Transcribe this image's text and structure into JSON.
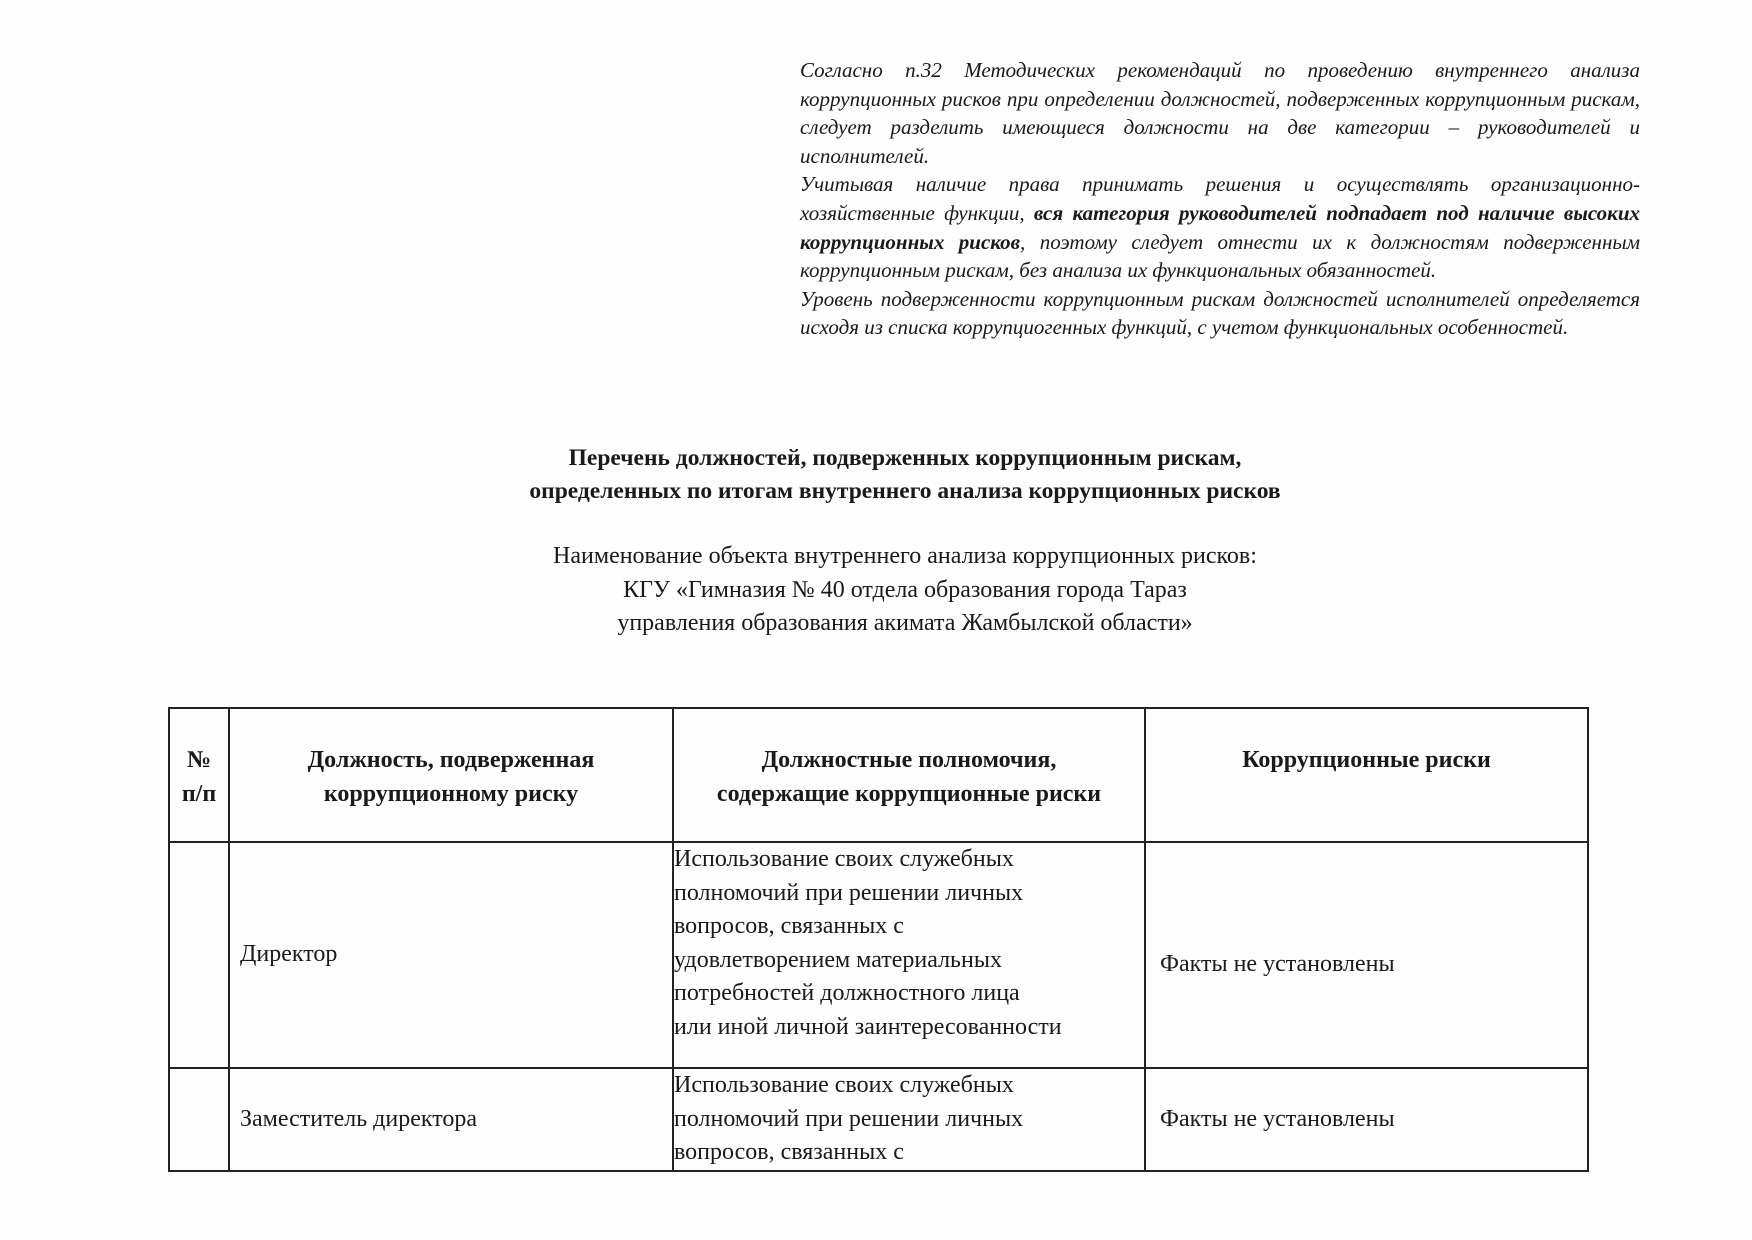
{
  "intro": {
    "p1": "Согласно п.32 Методических рекомендаций по проведению внутреннего анализа коррупционных рисков при определении должностей, подверженных коррупционным рискам, следует разделить имеющиеся должности на две категории – руководителей и исполнителей.",
    "p2_start": "Учитывая наличие права принимать решения и осуществлять организационно-хозяйственные функции, ",
    "p2_bold": "вся категория руководителей подпадает под наличие высоких коррупционных рисков",
    "p2_end": ", поэтому следует отнести их к должностям подверженным коррупционным рискам, без анализа их функциональных обязанностей.",
    "p3": "Уровень подверженности коррупционным рискам должностей исполнителей определяется исходя из списка коррупциогенных функций, с учетом функциональных особенностей."
  },
  "title": {
    "line1": "Перечень должностей, подверженных коррупционным рискам,",
    "line2": "определенных по итогам внутреннего анализа коррупционных рисков"
  },
  "subtitle": {
    "line1": "Наименование объекта внутреннего анализа коррупционных рисков:",
    "line2": "КГУ «Гимназия № 40 отдела образования города Тараз",
    "line3": "управления образования акимата Жамбылской области»"
  },
  "table": {
    "headers": {
      "num_line1": "№",
      "num_line2": "п/п",
      "position_line1": "Должность, подверженная",
      "position_line2": "коррупционному риску",
      "authority_line1": "Должностные полномочия,",
      "authority_line2": "содержащие коррупционные риски",
      "risks": "Коррупционные риски"
    },
    "rows": [
      {
        "num": "",
        "position": "Директор",
        "authority_lines": [
          "Использование своих служебных",
          "полномочий при решении личных",
          "вопросов, связанных с",
          "удовлетворением материальных",
          "потребностей должностного лица",
          "или иной личной заинтересованности"
        ],
        "risks": "Факты не установлены"
      },
      {
        "num": "",
        "position": "Заместитель директора",
        "authority_lines": [
          "Использование своих служебных",
          "полномочий при решении личных",
          "вопросов, связанных с"
        ],
        "risks": "Факты не установлены"
      }
    ]
  }
}
